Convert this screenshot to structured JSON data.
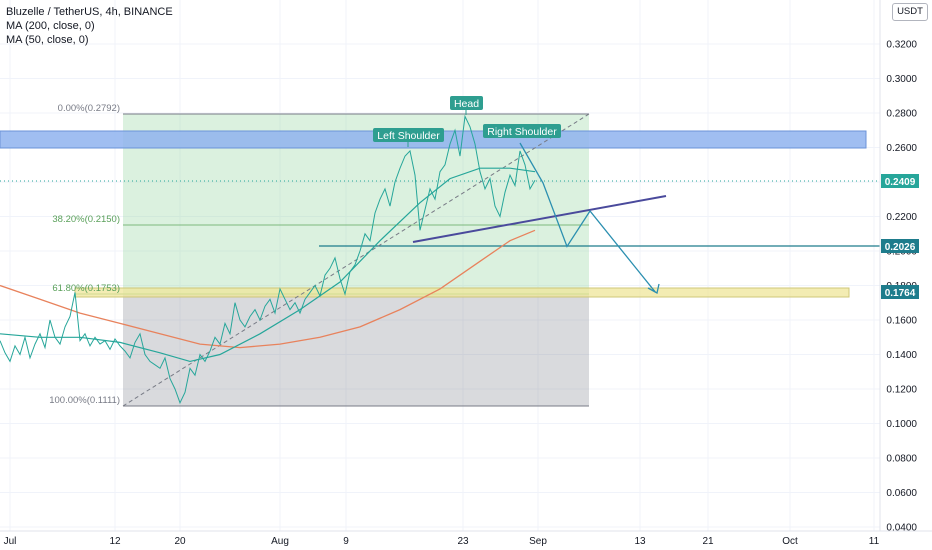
{
  "legend": {
    "symbol": "Bluzelle / TetherUS, 4h, BINANCE",
    "ma200": "MA (200, close, 0)",
    "ma50": "MA (50, close, 0)"
  },
  "currency_button": "USDT",
  "colors": {
    "price_line": "#26a69a",
    "ma200": "#e8825c",
    "ma50": "#26a69a",
    "fib_upper_fill": "#8fd29a",
    "fib_lower_fill": "#787b86",
    "blue_zone": "#8fb3ee",
    "yellow_zone": "#efe59a",
    "neckline": "#4a4a9c",
    "support_line": "#1e7c8c",
    "callout": "#2e9e90"
  },
  "chart_data": {
    "type": "line",
    "y_axis": {
      "ticks": [
        "0.3200",
        "0.3000",
        "0.2800",
        "0.2600",
        "0.2400",
        "0.2200",
        "0.2000",
        "0.1800",
        "0.1600",
        "0.1400",
        "0.1200",
        "0.1000",
        "0.0800",
        "0.0600",
        "0.0400"
      ],
      "ylim": [
        0.04,
        0.33
      ]
    },
    "x_axis": {
      "ticks": [
        "Jul",
        "12",
        "20",
        "Aug",
        "9",
        "23",
        "Sep",
        "13",
        "21",
        "Oct",
        "11"
      ]
    },
    "price_tags": [
      {
        "label": "0.2409",
        "value": 0.2409
      },
      {
        "label": "0.2026",
        "value": 0.2026
      },
      {
        "label": "0.1764",
        "value": 0.1764
      }
    ],
    "fibonacci": [
      {
        "label": "0.00%(0.2792)",
        "value": 0.2792
      },
      {
        "label": "38.20%(0.2150)",
        "value": 0.215
      },
      {
        "label": "61.80%(0.1753)",
        "value": 0.1753
      },
      {
        "label": "100.00%(0.1111)",
        "value": 0.1111
      }
    ],
    "annotations": {
      "head": "Head",
      "left_shoulder": "Left Shoulder",
      "right_shoulder": "Right Shoulder"
    },
    "series": [
      {
        "kind": "price",
        "points": [
          [
            0,
            0.148
          ],
          [
            5,
            0.141
          ],
          [
            10,
            0.136
          ],
          [
            15,
            0.145
          ],
          [
            20,
            0.14
          ],
          [
            25,
            0.15
          ],
          [
            30,
            0.138
          ],
          [
            35,
            0.146
          ],
          [
            40,
            0.152
          ],
          [
            45,
            0.144
          ],
          [
            50,
            0.16
          ],
          [
            55,
            0.15
          ],
          [
            60,
            0.146
          ],
          [
            65,
            0.156
          ],
          [
            70,
            0.162
          ],
          [
            75,
            0.176
          ],
          [
            80,
            0.148
          ],
          [
            85,
            0.152
          ],
          [
            90,
            0.145
          ],
          [
            95,
            0.15
          ],
          [
            100,
            0.146
          ],
          [
            105,
            0.148
          ],
          [
            110,
            0.143
          ],
          [
            115,
            0.149
          ],
          [
            120,
            0.145
          ],
          [
            125,
            0.142
          ],
          [
            130,
            0.138
          ],
          [
            135,
            0.147
          ],
          [
            140,
            0.152
          ],
          [
            145,
            0.14
          ],
          [
            150,
            0.136
          ],
          [
            155,
            0.134
          ],
          [
            160,
            0.132
          ],
          [
            165,
            0.138
          ],
          [
            170,
            0.126
          ],
          [
            175,
            0.12
          ],
          [
            180,
            0.112
          ],
          [
            185,
            0.118
          ],
          [
            190,
            0.132
          ],
          [
            195,
            0.128
          ],
          [
            200,
            0.14
          ],
          [
            205,
            0.136
          ],
          [
            210,
            0.142
          ],
          [
            215,
            0.15
          ],
          [
            220,
            0.146
          ],
          [
            225,
            0.158
          ],
          [
            230,
            0.152
          ],
          [
            235,
            0.17
          ],
          [
            240,
            0.16
          ],
          [
            245,
            0.156
          ],
          [
            250,
            0.162
          ],
          [
            255,
            0.166
          ],
          [
            260,
            0.16
          ],
          [
            265,
            0.168
          ],
          [
            270,
            0.172
          ],
          [
            275,
            0.164
          ],
          [
            280,
            0.178
          ],
          [
            285,
            0.172
          ],
          [
            290,
            0.166
          ],
          [
            295,
            0.17
          ],
          [
            300,
            0.164
          ],
          [
            305,
            0.172
          ],
          [
            310,
            0.176
          ],
          [
            315,
            0.18
          ],
          [
            320,
            0.174
          ],
          [
            325,
            0.186
          ],
          [
            330,
            0.19
          ],
          [
            335,
            0.196
          ],
          [
            340,
            0.184
          ],
          [
            345,
            0.175
          ],
          [
            350,
            0.188
          ],
          [
            355,
            0.192
          ],
          [
            360,
            0.2
          ],
          [
            365,
            0.21
          ],
          [
            370,
            0.206
          ],
          [
            375,
            0.222
          ],
          [
            380,
            0.23
          ],
          [
            385,
            0.236
          ],
          [
            390,
            0.226
          ],
          [
            395,
            0.24
          ],
          [
            400,
            0.248
          ],
          [
            405,
            0.255
          ],
          [
            410,
            0.258
          ],
          [
            415,
            0.244
          ],
          [
            420,
            0.212
          ],
          [
            425,
            0.224
          ],
          [
            430,
            0.236
          ],
          [
            435,
            0.23
          ],
          [
            440,
            0.246
          ],
          [
            445,
            0.25
          ],
          [
            450,
            0.262
          ],
          [
            455,
            0.27
          ],
          [
            460,
            0.255
          ],
          [
            465,
            0.278
          ],
          [
            470,
            0.272
          ],
          [
            475,
            0.262
          ],
          [
            480,
            0.246
          ],
          [
            485,
            0.236
          ],
          [
            490,
            0.242
          ],
          [
            495,
            0.226
          ],
          [
            500,
            0.22
          ],
          [
            505,
            0.234
          ],
          [
            510,
            0.244
          ],
          [
            515,
            0.238
          ],
          [
            520,
            0.258
          ],
          [
            525,
            0.25
          ],
          [
            530,
            0.236
          ],
          [
            535,
            0.241
          ]
        ]
      },
      {
        "kind": "ma50",
        "points": [
          [
            0,
            0.152
          ],
          [
            40,
            0.15
          ],
          [
            80,
            0.15
          ],
          [
            120,
            0.147
          ],
          [
            160,
            0.141
          ],
          [
            190,
            0.136
          ],
          [
            220,
            0.14
          ],
          [
            260,
            0.152
          ],
          [
            300,
            0.166
          ],
          [
            340,
            0.182
          ],
          [
            380,
            0.206
          ],
          [
            420,
            0.228
          ],
          [
            450,
            0.242
          ],
          [
            480,
            0.248
          ],
          [
            510,
            0.248
          ],
          [
            535,
            0.246
          ]
        ]
      },
      {
        "kind": "ma200",
        "points": [
          [
            0,
            0.18
          ],
          [
            40,
            0.172
          ],
          [
            80,
            0.164
          ],
          [
            120,
            0.158
          ],
          [
            160,
            0.152
          ],
          [
            200,
            0.146
          ],
          [
            240,
            0.144
          ],
          [
            280,
            0.146
          ],
          [
            320,
            0.15
          ],
          [
            360,
            0.156
          ],
          [
            400,
            0.166
          ],
          [
            440,
            0.178
          ],
          [
            480,
            0.194
          ],
          [
            510,
            0.206
          ],
          [
            535,
            0.212
          ]
        ]
      }
    ],
    "projection": [
      [
        520,
        0.2626
      ],
      [
        543,
        0.2395
      ],
      [
        567,
        0.2026
      ],
      [
        590,
        0.2232
      ],
      [
        655,
        0.1764
      ]
    ]
  }
}
